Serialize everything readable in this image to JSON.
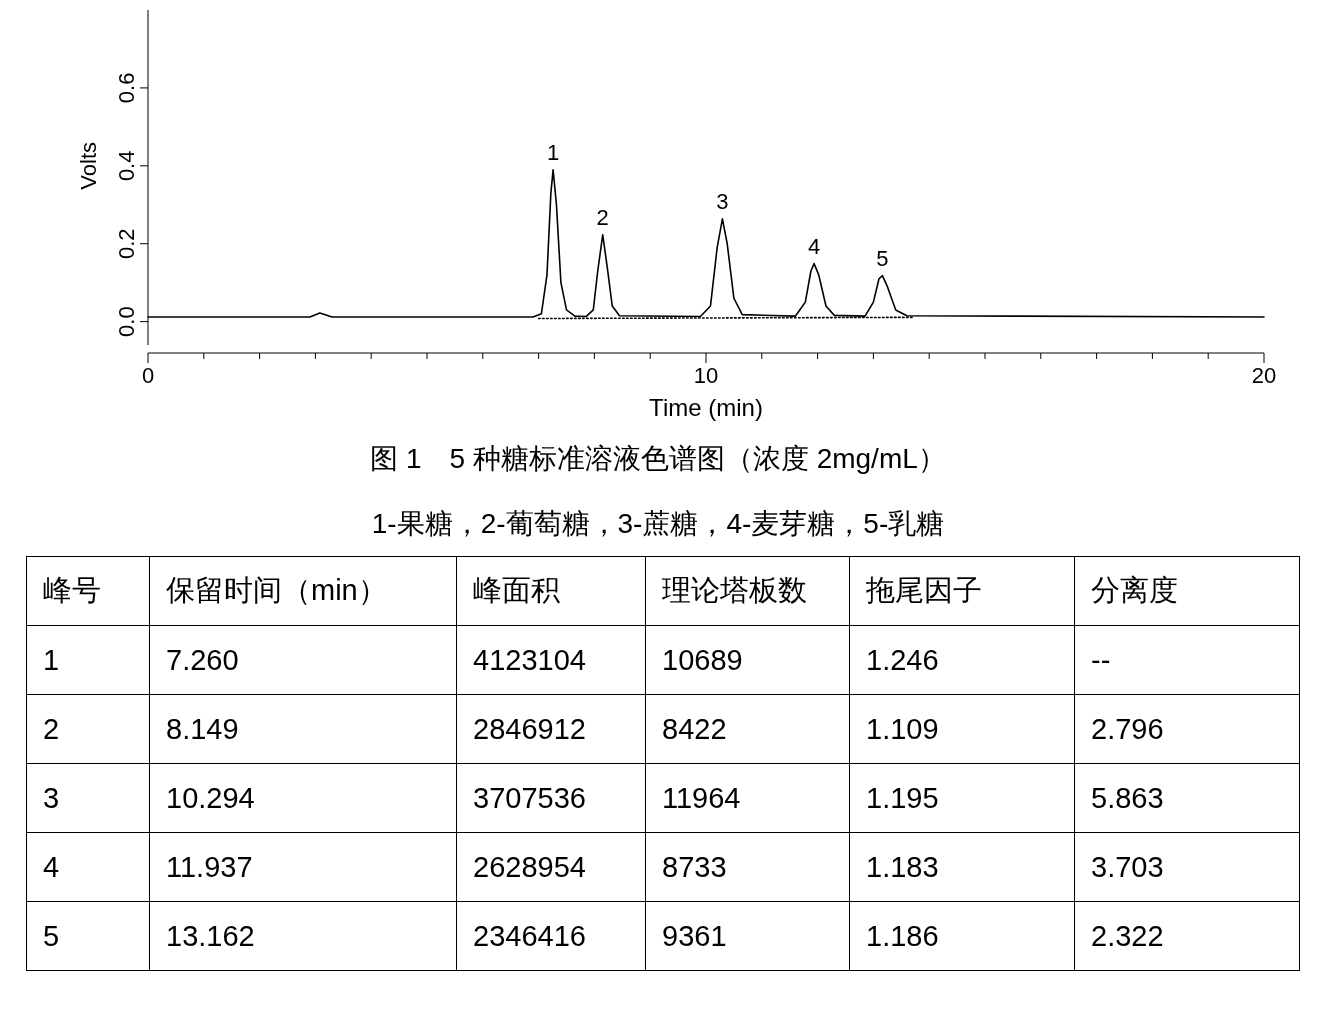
{
  "chart_data": {
    "type": "line",
    "title": "图 1　5 种糖标准溶液色谱图（浓度 2mg/mL）",
    "subtitle": "1-果糖，2-葡萄糖，3-蔗糖，4-麦芽糖，5-乳糖",
    "xlabel": "Time (min)",
    "ylabel": "Volts",
    "xlim": [
      0,
      20
    ],
    "ylim": [
      -0.06,
      0.8
    ],
    "xticks": [
      0,
      {
        "value": 1,
        "label": null
      },
      {
        "value": 2,
        "label": null
      },
      {
        "value": 3,
        "label": null
      },
      {
        "value": 4,
        "label": null
      },
      {
        "value": 5,
        "label": null
      },
      {
        "value": 6,
        "label": null
      },
      {
        "value": 7,
        "label": null
      },
      {
        "value": 8,
        "label": null
      },
      {
        "value": 9,
        "label": null
      },
      10,
      {
        "value": 11,
        "label": null
      },
      {
        "value": 12,
        "label": null
      },
      {
        "value": 13,
        "label": null
      },
      {
        "value": 14,
        "label": null
      },
      {
        "value": 15,
        "label": null
      },
      {
        "value": 16,
        "label": null
      },
      {
        "value": 17,
        "label": null
      },
      {
        "value": 18,
        "label": null
      },
      {
        "value": 19,
        "label": null
      },
      20
    ],
    "yticks": [
      {
        "value": 0,
        "label": "0.0"
      },
      {
        "value": 0.2,
        "label": "0.2"
      },
      {
        "value": 0.4,
        "label": "0.4"
      },
      {
        "value": 0.6,
        "label": "0.6"
      }
    ],
    "series": [
      {
        "color": "#000000",
        "line_style": "solid",
        "x": [
          0,
          2.9,
          3.08,
          3.3,
          6.9,
          7.05,
          7.15,
          7.22,
          7.26,
          7.32,
          7.4,
          7.5,
          7.65,
          7.85,
          7.98,
          8.06,
          8.149,
          8.23,
          8.32,
          8.45,
          9.9,
          10.08,
          10.2,
          10.294,
          10.38,
          10.5,
          10.65,
          11.6,
          11.78,
          11.88,
          11.937,
          12.02,
          12.15,
          12.3,
          12.85,
          13.0,
          13.1,
          13.162,
          13.25,
          13.4,
          13.6,
          20
        ],
        "values": [
          0.012,
          0.012,
          0.022,
          0.012,
          0.012,
          0.02,
          0.12,
          0.33,
          0.39,
          0.3,
          0.1,
          0.03,
          0.014,
          0.013,
          0.03,
          0.13,
          0.223,
          0.14,
          0.04,
          0.015,
          0.013,
          0.04,
          0.19,
          0.264,
          0.2,
          0.06,
          0.018,
          0.014,
          0.05,
          0.13,
          0.149,
          0.12,
          0.04,
          0.016,
          0.014,
          0.05,
          0.11,
          0.118,
          0.09,
          0.03,
          0.015,
          0.012
        ]
      },
      {
        "color": "#000000",
        "line_style": "dotted",
        "x": [
          7.0,
          13.7
        ],
        "values": [
          0.008,
          0.011
        ]
      }
    ],
    "annotations": [
      {
        "text": "1",
        "x": 7.26,
        "y": 0.39
      },
      {
        "text": "2",
        "x": 8.149,
        "y": 0.223
      },
      {
        "text": "3",
        "x": 10.294,
        "y": 0.264
      },
      {
        "text": "4",
        "x": 11.937,
        "y": 0.149
      },
      {
        "text": "5",
        "x": 13.162,
        "y": 0.118
      },
      "峰号",
      "保留时间（min）",
      "峰面积",
      "理论塔板数",
      "拖尾因子",
      "分离度",
      "1",
      "7.260",
      "4123104",
      "10689",
      "1.246",
      "--",
      "2",
      "8.149",
      "2846912",
      "8422",
      "1.109",
      "2.796",
      "3",
      "10.294",
      "3707536",
      "11964",
      "1.195",
      "5.863",
      "4",
      "11.937",
      "2628954",
      "8733",
      "1.183",
      "3.703",
      "5",
      "13.162",
      "2346416",
      "9361",
      "1.186",
      "2.322"
    ]
  }
}
